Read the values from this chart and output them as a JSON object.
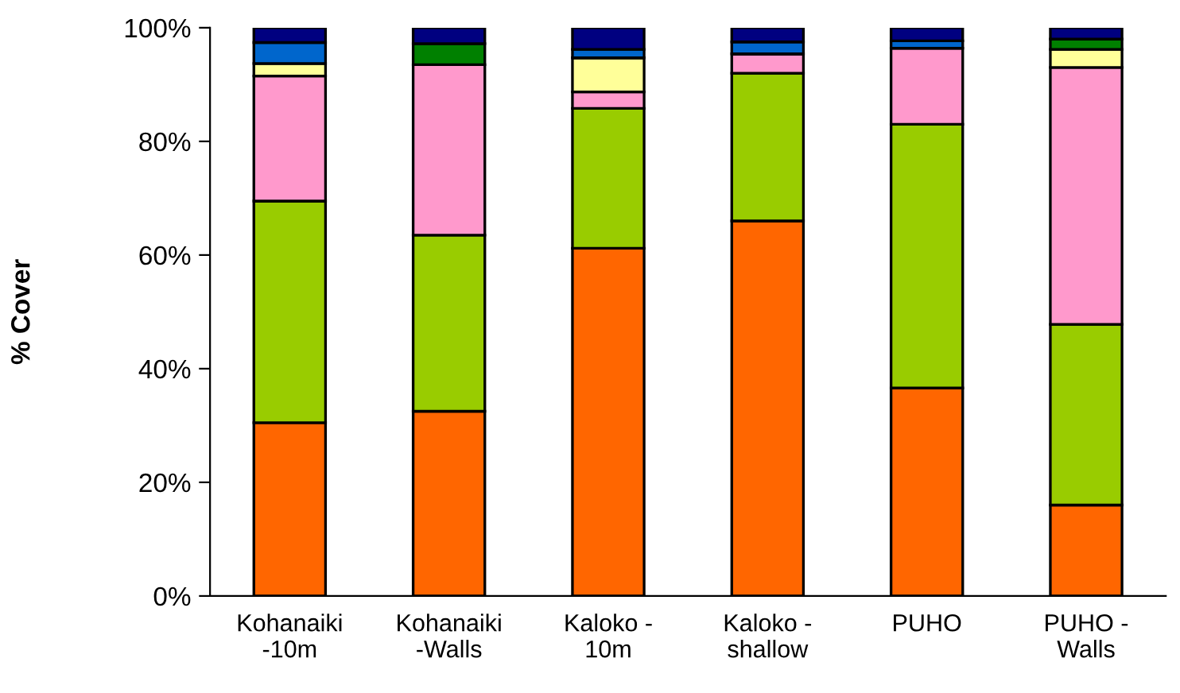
{
  "chart_data": {
    "type": "bar",
    "stacked": true,
    "ylabel": "% Cover",
    "categories": [
      "Kohanaiki\n-10m",
      "Kohanaiki\n-Walls",
      "Kaloko -\n10m",
      "Kaloko -\nshallow",
      "PUHO",
      "PUHO -\nWalls"
    ],
    "series": [
      {
        "color": "#ff6600",
        "values": [
          30.5,
          32.5,
          61.2,
          66,
          36.6,
          16
        ]
      },
      {
        "color": "#99cc00",
        "values": [
          39,
          31,
          24.6,
          26,
          46.4,
          31.8
        ]
      },
      {
        "color": "#ff99cc",
        "values": [
          22,
          30,
          2.9,
          3.4,
          13.4,
          45.2
        ]
      },
      {
        "color": "#ffff99",
        "values": [
          2.2,
          0,
          6,
          0,
          0,
          3.2
        ]
      },
      {
        "color": "#008000",
        "values": [
          0,
          3.7,
          0,
          0,
          0,
          1.8
        ]
      },
      {
        "color": "#0066cc",
        "values": [
          3.7,
          0,
          1.5,
          2.1,
          1.3,
          0
        ]
      },
      {
        "color": "#000080",
        "values": [
          2.6,
          2.8,
          3.8,
          2.5,
          2.3,
          2
        ]
      }
    ],
    "ylim": [
      0,
      100
    ],
    "yticks": [
      {
        "value": 0,
        "label": "0%"
      },
      {
        "value": 20,
        "label": "20%"
      },
      {
        "value": 40,
        "label": "40%"
      },
      {
        "value": 60,
        "label": "60%"
      },
      {
        "value": 80,
        "label": "80%"
      },
      {
        "value": 100,
        "label": "100%"
      }
    ],
    "grid": false,
    "legend": false
  }
}
